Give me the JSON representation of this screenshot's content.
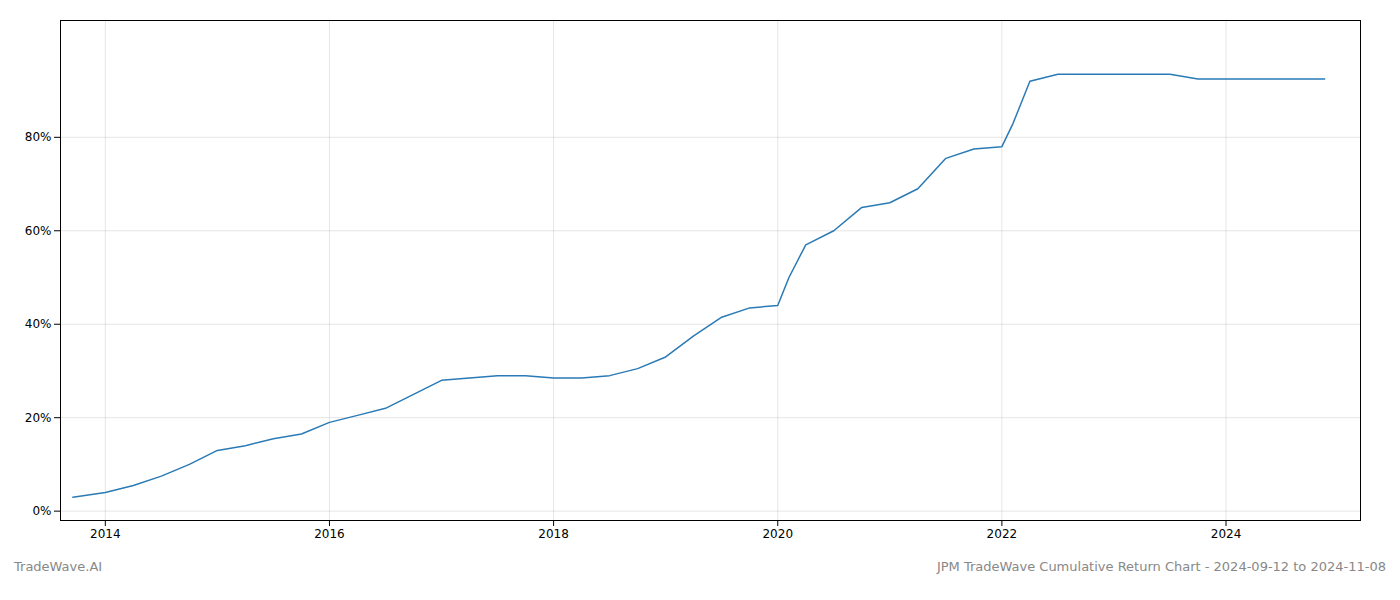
{
  "chart_data": {
    "type": "line",
    "title": "JPM TradeWave Cumulative Return Chart - 2024-09-12 to 2024-11-08",
    "annotations": [
      "TradeWave.AI"
    ],
    "x": [
      2013.71,
      2014.0,
      2014.25,
      2014.5,
      2014.75,
      2015.0,
      2015.25,
      2015.5,
      2015.75,
      2016.0,
      2016.25,
      2016.5,
      2016.75,
      2017.0,
      2017.25,
      2017.5,
      2017.75,
      2018.0,
      2018.25,
      2018.5,
      2018.75,
      2019.0,
      2019.25,
      2019.5,
      2019.75,
      2020.0,
      2020.1,
      2020.25,
      2020.5,
      2020.75,
      2021.0,
      2021.25,
      2021.5,
      2021.75,
      2022.0,
      2022.1,
      2022.25,
      2022.5,
      2022.75,
      2023.0,
      2023.25,
      2023.5,
      2023.75,
      2024.0,
      2024.25,
      2024.5,
      2024.75,
      2024.88
    ],
    "values": [
      0.03,
      0.04,
      0.055,
      0.075,
      0.1,
      0.13,
      0.14,
      0.155,
      0.165,
      0.19,
      0.205,
      0.22,
      0.25,
      0.28,
      0.285,
      0.29,
      0.29,
      0.285,
      0.285,
      0.29,
      0.305,
      0.33,
      0.375,
      0.415,
      0.435,
      0.44,
      0.5,
      0.57,
      0.6,
      0.65,
      0.66,
      0.69,
      0.755,
      0.775,
      0.78,
      0.83,
      0.92,
      0.935,
      0.935,
      0.935,
      0.935,
      0.935,
      0.925,
      0.925,
      0.925,
      0.925,
      0.925,
      0.925
    ],
    "color": "#2a7ab5",
    "xlim": [
      2013.6,
      2025.2
    ],
    "xticks": [
      2014,
      2016,
      2018,
      2020,
      2022,
      2024
    ],
    "ylim": [
      -0.02,
      1.05
    ],
    "yticks": [
      {
        "value": 0.0,
        "label": "0%"
      },
      {
        "value": 0.2,
        "label": "20%"
      },
      {
        "value": 0.4,
        "label": "40%"
      },
      {
        "value": 0.6,
        "label": "60%"
      },
      {
        "value": 0.8,
        "label": "80%"
      }
    ],
    "grid": true
  }
}
